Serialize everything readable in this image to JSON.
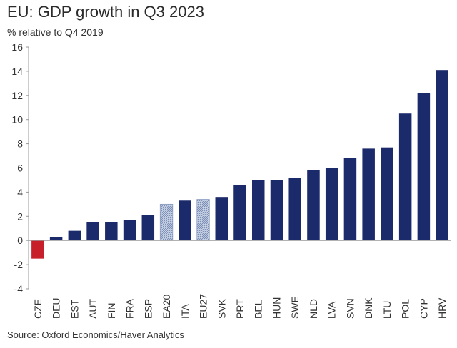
{
  "chart_data": {
    "type": "bar",
    "title": "EU: GDP growth in Q3 2023",
    "subtitle": "% relative to Q4 2019",
    "source": "Source: Oxford Economics/Haver Analytics",
    "xlabel": "",
    "ylabel": "% relative to Q4 2019",
    "ylim": [
      -4,
      16
    ],
    "yticks": [
      -4,
      -2,
      0,
      2,
      4,
      6,
      8,
      10,
      12,
      14,
      16
    ],
    "grid": false,
    "categories": [
      "CZE",
      "DEU",
      "EST",
      "AUT",
      "FIN",
      "FRA",
      "ESP",
      "EA20",
      "ITA",
      "EU27",
      "SVK",
      "PRT",
      "BEL",
      "HUN",
      "SWE",
      "NLD",
      "LVA",
      "SVN",
      "DNK",
      "LTU",
      "POL",
      "CYP",
      "HRV"
    ],
    "values": [
      -1.5,
      0.3,
      0.8,
      1.5,
      1.5,
      1.7,
      2.1,
      3.0,
      3.3,
      3.4,
      3.6,
      4.6,
      5.0,
      5.0,
      5.2,
      5.8,
      6.0,
      6.8,
      7.6,
      7.7,
      10.5,
      12.2,
      14.1
    ],
    "bar_styles": [
      "negative",
      "normal",
      "normal",
      "normal",
      "normal",
      "normal",
      "normal",
      "aggregate",
      "normal",
      "aggregate",
      "normal",
      "normal",
      "normal",
      "normal",
      "normal",
      "normal",
      "normal",
      "normal",
      "normal",
      "normal",
      "normal",
      "normal",
      "normal"
    ],
    "colors": {
      "normal": "#1b2a6b",
      "negative": "#c8202a",
      "aggregate": "#b7c4dc",
      "axis": "#999999"
    }
  }
}
